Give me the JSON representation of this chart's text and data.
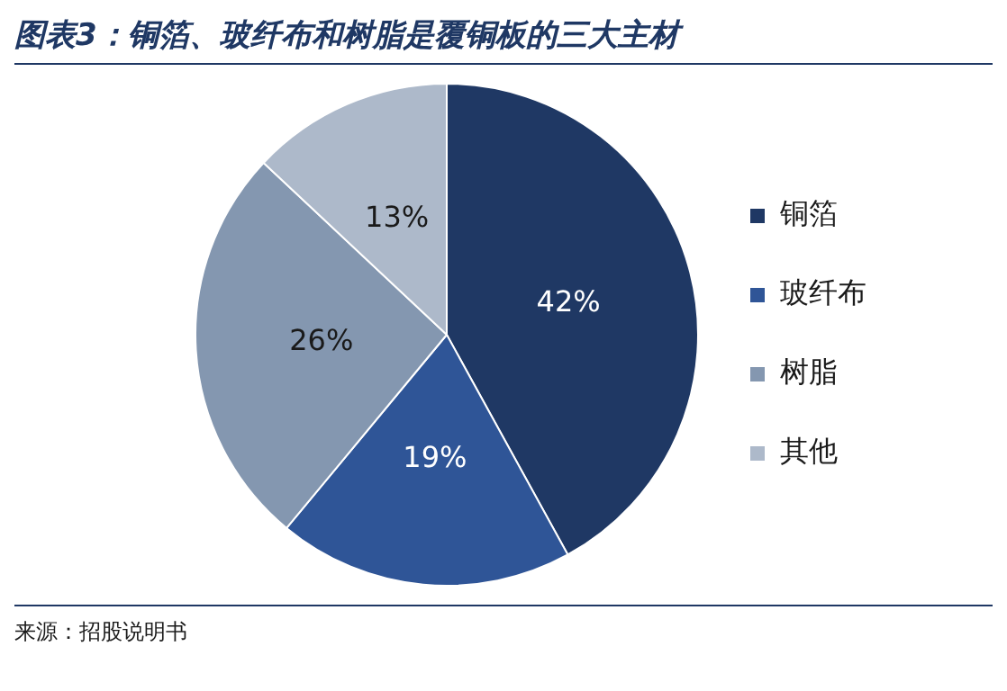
{
  "chart_data": {
    "type": "pie",
    "title": "图表3：铜箔、玻纤布和树脂是覆铜板的三大主材",
    "categories": [
      "铜箔",
      "玻纤布",
      "树脂",
      "其他"
    ],
    "values": [
      42,
      19,
      26,
      13
    ],
    "colors": [
      "#1f3864",
      "#2f5597",
      "#8497b0",
      "#adb9ca"
    ],
    "value_labels": [
      "42%",
      "19%",
      "26%",
      "13%"
    ],
    "legend": "right",
    "annotations": [
      "来源：招股说明书"
    ]
  }
}
